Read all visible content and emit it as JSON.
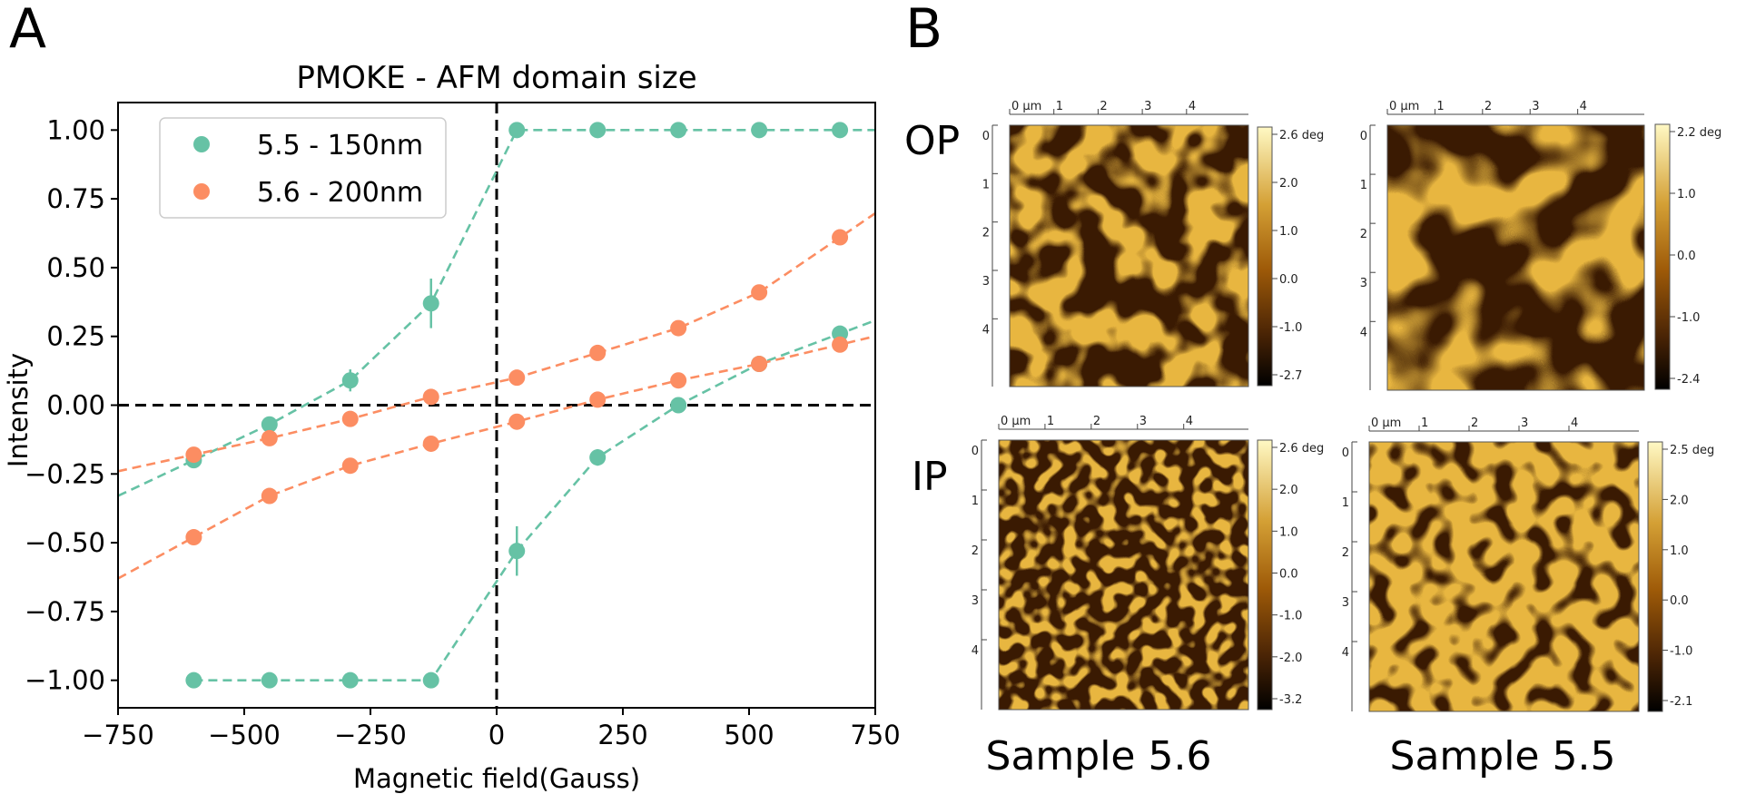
{
  "panel_a": {
    "letter": "A",
    "chart_data": {
      "type": "line",
      "title": "PMOKE - AFM domain size",
      "xlabel": "Magnetic field(Gauss)",
      "ylabel": "Intensity",
      "xlim": [
        -750,
        750
      ],
      "ylim": [
        -1.1,
        1.1
      ],
      "xticks": [
        -750,
        -500,
        -250,
        0,
        250,
        500,
        750
      ],
      "xtick_labels": [
        "−750",
        "−500",
        "−250",
        "0",
        "250",
        "500",
        "750"
      ],
      "yticks": [
        -1.0,
        -0.75,
        -0.5,
        -0.25,
        0.0,
        0.25,
        0.5,
        0.75,
        1.0
      ],
      "ytick_labels": [
        "−1.00",
        "−0.75",
        "−0.50",
        "−0.25",
        "0.00",
        "0.25",
        "0.50",
        "0.75",
        "1.00"
      ],
      "grid": false,
      "legend_position": "top-left",
      "reference_lines": {
        "x": 0,
        "y": 0,
        "style": "dashed",
        "color": "#000000"
      },
      "series": [
        {
          "name": "5.5 - 150nm",
          "color": "#66c2a5",
          "branches": [
            {
              "points": [
                [
                  -600,
                  -1.0
                ],
                [
                  -450,
                  -1.0
                ],
                [
                  -290,
                  -1.0
                ],
                [
                  -130,
                  -1.0
                ],
                [
                  40,
                  -0.53
                ],
                [
                  200,
                  -0.19
                ],
                [
                  360,
                  0.0
                ],
                [
                  520,
                  0.15
                ],
                [
                  680,
                  0.26
                ]
              ],
              "errors": [
                0,
                0,
                0,
                0,
                0.09,
                0.03,
                0.01,
                0.01,
                0.01
              ],
              "line_x_range": [
                -600,
                750
              ]
            },
            {
              "points": [
                [
                  -600,
                  -0.2
                ],
                [
                  -450,
                  -0.07
                ],
                [
                  -290,
                  0.09
                ],
                [
                  -130,
                  0.37
                ],
                [
                  40,
                  1.0
                ],
                [
                  200,
                  1.0
                ],
                [
                  360,
                  1.0
                ],
                [
                  520,
                  1.0
                ],
                [
                  680,
                  1.0
                ]
              ],
              "errors": [
                0.01,
                0.01,
                0.04,
                0.09,
                0,
                0,
                0,
                0,
                0
              ],
              "line_x_range": [
                -750,
                750
              ]
            }
          ]
        },
        {
          "name": "5.6 - 200nm",
          "color": "#fc8d62",
          "branches": [
            {
              "points": [
                [
                  -600,
                  -0.48
                ],
                [
                  -450,
                  -0.33
                ],
                [
                  -290,
                  -0.22
                ],
                [
                  -130,
                  -0.14
                ],
                [
                  40,
                  -0.06
                ],
                [
                  200,
                  0.02
                ],
                [
                  360,
                  0.09
                ],
                [
                  520,
                  0.15
                ],
                [
                  680,
                  0.22
                ]
              ],
              "errors": [
                0,
                0,
                0,
                0,
                0,
                0,
                0,
                0,
                0
              ],
              "line_x_range": [
                -750,
                750
              ]
            },
            {
              "points": [
                [
                  -600,
                  -0.18
                ],
                [
                  -450,
                  -0.12
                ],
                [
                  -290,
                  -0.05
                ],
                [
                  -130,
                  0.03
                ],
                [
                  40,
                  0.1
                ],
                [
                  200,
                  0.19
                ],
                [
                  360,
                  0.28
                ],
                [
                  520,
                  0.41
                ],
                [
                  680,
                  0.61
                ]
              ],
              "errors": [
                0,
                0,
                0,
                0,
                0,
                0,
                0,
                0,
                0
              ],
              "line_x_range": [
                -750,
                750
              ]
            }
          ]
        }
      ]
    }
  },
  "panel_b": {
    "letter": "B",
    "row_labels": [
      "OP",
      "IP"
    ],
    "column_labels": [
      "Sample 5.6",
      "Sample 5.5"
    ],
    "images": [
      {
        "name": "op-5-6",
        "x_axis_labels": [
          "0 μm",
          "1",
          "2",
          "3",
          "4"
        ],
        "y_axis_labels": [
          "0",
          "1",
          "2",
          "3",
          "4"
        ],
        "colorbar_labels": [
          "2.6 deg",
          "2.0",
          "1.0",
          "0.0",
          "-1.0",
          "-2.7"
        ],
        "pattern": "maze-coarse"
      },
      {
        "name": "op-5-5",
        "x_axis_labels": [
          "0 μm",
          "1",
          "2",
          "3",
          "4"
        ],
        "y_axis_labels": [
          "0",
          "1",
          "2",
          "3",
          "4"
        ],
        "colorbar_labels": [
          "2.2 deg",
          "1.0",
          "0.0",
          "-1.0",
          "-2.4"
        ],
        "pattern": "stripes-wide"
      },
      {
        "name": "ip-5-6",
        "x_axis_labels": [
          "0 μm",
          "1",
          "2",
          "3",
          "4"
        ],
        "y_axis_labels": [
          "0",
          "1",
          "2",
          "3",
          "4"
        ],
        "colorbar_labels": [
          "2.6 deg",
          "2.0",
          "1.0",
          "0.0",
          "-1.0",
          "-2.0",
          "-3.2"
        ],
        "pattern": "maze-fine"
      },
      {
        "name": "ip-5-5",
        "x_axis_labels": [
          "0 μm",
          "1",
          "2",
          "3",
          "4"
        ],
        "y_axis_labels": [
          "0",
          "1",
          "2",
          "3",
          "4"
        ],
        "colorbar_labels": [
          "2.5 deg",
          "2.0",
          "1.0",
          "0.0",
          "-1.0",
          "-2.1"
        ],
        "pattern": "bubbles"
      }
    ]
  }
}
